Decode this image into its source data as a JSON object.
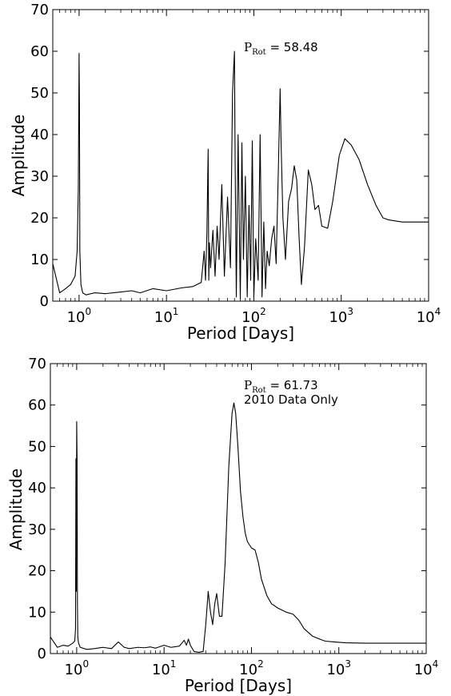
{
  "chart_data": [
    {
      "type": "line",
      "xlabel": "Period [Days]",
      "ylabel": "Amplitude",
      "xscale": "log",
      "xlim": [
        0.5,
        10000
      ],
      "ylim": [
        0,
        70
      ],
      "yticks": [
        "0",
        "10",
        "20",
        "30",
        "40",
        "50",
        "60",
        "70"
      ],
      "xticks": [
        {
          "base": "10",
          "exp": "0",
          "value": 1
        },
        {
          "base": "10",
          "exp": "1",
          "value": 10
        },
        {
          "base": "10",
          "exp": "2",
          "value": 100
        },
        {
          "base": "10",
          "exp": "3",
          "value": 1000
        },
        {
          "base": "10",
          "exp": "4",
          "value": 10000
        }
      ],
      "annotation": {
        "symbol": "P",
        "subscript": "Rot",
        "text": " = 58.48"
      },
      "line_color": "#000000",
      "series": [
        {
          "x": [
            0.5,
            0.6,
            0.7,
            0.8,
            0.9,
            0.95,
            0.98,
            1.0,
            1.01,
            1.02,
            1.05,
            1.1,
            1.2,
            1.5,
            2,
            3,
            4,
            5,
            7,
            10,
            15,
            20,
            25,
            27,
            28,
            29,
            30,
            30.5,
            31,
            32,
            34,
            36,
            38,
            40,
            43,
            46,
            50,
            54,
            57,
            60,
            61,
            63,
            66,
            70,
            73,
            76,
            80,
            84,
            88,
            92,
            96,
            100,
            105,
            112,
            118,
            124,
            130,
            136,
            142,
            150,
            160,
            170,
            180,
            190,
            200,
            205,
            215,
            230,
            250,
            270,
            290,
            310,
            330,
            350,
            380,
            420,
            460,
            500,
            550,
            600,
            700,
            800,
            950,
            1100,
            1300,
            1600,
            2000,
            2500,
            3000,
            3500,
            5000,
            10000
          ],
          "y": [
            9,
            2,
            3,
            4,
            6,
            12,
            27,
            59.5,
            47,
            12,
            4,
            2,
            1.5,
            2,
            1.8,
            2.2,
            2.5,
            2.0,
            3.0,
            2.5,
            3.2,
            3.5,
            4.5,
            12,
            5,
            16,
            36.5,
            5,
            14,
            8,
            17,
            6,
            18,
            10,
            28,
            6,
            25,
            8,
            50,
            60,
            35,
            1,
            40,
            0.5,
            38,
            10,
            30,
            1,
            23,
            5,
            38.5,
            1,
            15,
            5,
            40,
            1,
            19,
            3,
            12,
            8.5,
            15,
            18,
            9,
            30,
            51,
            38,
            20,
            10,
            24,
            27,
            32.5,
            29,
            15,
            4,
            13,
            31.5,
            28,
            22,
            23,
            18,
            17.5,
            24,
            35,
            39,
            37.5,
            34,
            28,
            23,
            20,
            19.5,
            19,
            19
          ]
        }
      ]
    },
    {
      "type": "line",
      "xlabel": "Period [Days]",
      "ylabel": "Amplitude",
      "xscale": "log",
      "xlim": [
        0.5,
        10000
      ],
      "ylim": [
        0,
        70
      ],
      "yticks": [
        "0",
        "10",
        "20",
        "30",
        "40",
        "50",
        "60",
        "70"
      ],
      "xticks": [
        {
          "base": "10",
          "exp": "0",
          "value": 1
        },
        {
          "base": "10",
          "exp": "1",
          "value": 10
        },
        {
          "base": "10",
          "exp": "2",
          "value": 100
        },
        {
          "base": "10",
          "exp": "3",
          "value": 1000
        },
        {
          "base": "10",
          "exp": "4",
          "value": 10000
        }
      ],
      "annotation": {
        "symbol": "P",
        "subscript": "Rot",
        "text": " = 61.73",
        "line2": "2010 Data Only"
      },
      "line_color": "#000000",
      "series": [
        {
          "x": [
            0.5,
            0.6,
            0.7,
            0.8,
            0.9,
            0.95,
            0.97,
            0.98,
            0.99,
            1.0,
            1.01,
            1.02,
            1.03,
            1.05,
            1.1,
            1.3,
            1.6,
            2,
            2.5,
            3,
            3.5,
            4,
            5,
            6,
            7,
            8,
            10,
            12,
            15,
            17,
            18,
            19,
            20,
            22,
            25,
            28,
            30,
            32,
            34,
            36,
            38,
            40,
            43,
            46,
            50,
            55,
            60,
            63,
            66,
            70,
            75,
            80,
            85,
            90,
            100,
            110,
            120,
            130,
            150,
            170,
            200,
            250,
            300,
            350,
            400,
            500,
            600,
            700,
            900,
            1200,
            2000,
            4000,
            10000
          ],
          "y": [
            4,
            1.5,
            2,
            1.8,
            2.5,
            3,
            6,
            47,
            15,
            56,
            47,
            12,
            4,
            2.5,
            1.5,
            1,
            1.2,
            1.5,
            1.2,
            2.8,
            1.5,
            1.2,
            1.5,
            1.4,
            1.6,
            1.3,
            2,
            1.5,
            1.8,
            3.2,
            2,
            3.5,
            2,
            0.5,
            0.3,
            0.5,
            7,
            15,
            10,
            7,
            12,
            14.5,
            9,
            9,
            22,
            45,
            58,
            60.5,
            58,
            50,
            39,
            33,
            29,
            27,
            25.5,
            25,
            22,
            18,
            14,
            12,
            11,
            10,
            9.5,
            8,
            6,
            4.2,
            3.5,
            3,
            2.8,
            2.6,
            2.5,
            2.5,
            2.5
          ]
        }
      ]
    }
  ]
}
